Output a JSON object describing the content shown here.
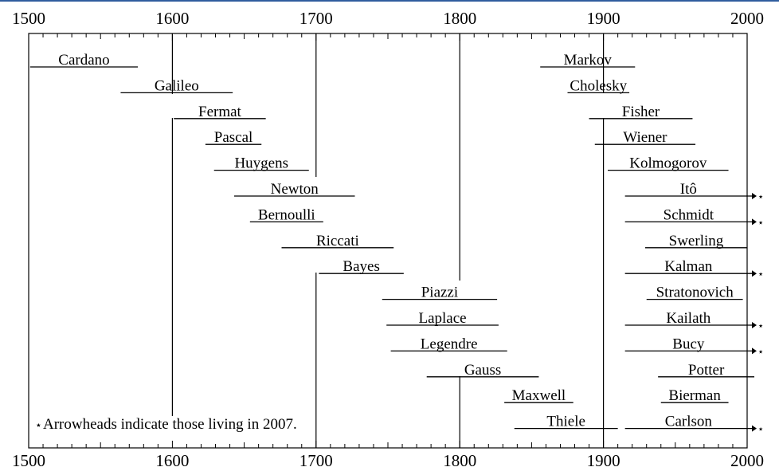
{
  "chart_data": {
    "type": "timeline",
    "xlim": [
      1500,
      2000
    ],
    "ticks": [
      1500,
      1600,
      1700,
      1800,
      1900,
      2000
    ],
    "tick_labels": [
      "1500",
      "1600",
      "1700",
      "1800",
      "1900",
      "2000"
    ],
    "minor_tick_step": 10,
    "century_lines": [
      1600,
      1700,
      1800,
      1900
    ],
    "people": [
      {
        "name": "Cardano",
        "birth": 1501,
        "death": 1576,
        "living": false
      },
      {
        "name": "Galileo",
        "birth": 1564,
        "death": 1642,
        "living": false
      },
      {
        "name": "Fermat",
        "birth": 1601,
        "death": 1665,
        "living": false
      },
      {
        "name": "Pascal",
        "birth": 1623,
        "death": 1662,
        "living": false
      },
      {
        "name": "Huygens",
        "birth": 1629,
        "death": 1695,
        "living": false
      },
      {
        "name": "Newton",
        "birth": 1643,
        "death": 1727,
        "living": false
      },
      {
        "name": "Bernoulli",
        "birth": 1654,
        "death": 1705,
        "living": false
      },
      {
        "name": "Riccati",
        "birth": 1676,
        "death": 1754,
        "living": false
      },
      {
        "name": "Bayes",
        "birth": 1702,
        "death": 1761,
        "living": false
      },
      {
        "name": "Piazzi",
        "birth": 1746,
        "death": 1826,
        "living": false
      },
      {
        "name": "Laplace",
        "birth": 1749,
        "death": 1827,
        "living": false
      },
      {
        "name": "Legendre",
        "birth": 1752,
        "death": 1833,
        "living": false
      },
      {
        "name": "Gauss",
        "birth": 1777,
        "death": 1855,
        "living": false
      },
      {
        "name": "Maxwell",
        "birth": 1831,
        "death": 1879,
        "living": false
      },
      {
        "name": "Thiele",
        "birth": 1838,
        "death": 1910,
        "living": false
      },
      {
        "name": "Markov",
        "birth": 1856,
        "death": 1922,
        "living": false
      },
      {
        "name": "Cholesky",
        "birth": 1875,
        "death": 1918,
        "living": false
      },
      {
        "name": "Fisher",
        "birth": 1890,
        "death": 1962,
        "living": false
      },
      {
        "name": "Wiener",
        "birth": 1894,
        "death": 1964,
        "living": false
      },
      {
        "name": "Kolmogorov",
        "birth": 1903,
        "death": 1987,
        "living": false
      },
      {
        "name": "Itô",
        "birth": 1915,
        "death": null,
        "living": true
      },
      {
        "name": "Schmidt",
        "birth": 1915,
        "death": null,
        "living": true
      },
      {
        "name": "Swerling",
        "birth": 1929,
        "death": 2000,
        "living": false
      },
      {
        "name": "Kalman",
        "birth": 1915,
        "death": null,
        "living": true
      },
      {
        "name": "Stratonovich",
        "birth": 1930,
        "death": 1997,
        "living": false
      },
      {
        "name": "Kailath",
        "birth": 1915,
        "death": null,
        "living": true
      },
      {
        "name": "Bucy",
        "birth": 1915,
        "death": null,
        "living": true
      },
      {
        "name": "Potter",
        "birth": 1938,
        "death": 2005,
        "living": false
      },
      {
        "name": "Bierman",
        "birth": 1940,
        "death": 1987,
        "living": false
      },
      {
        "name": "Carlson",
        "birth": 1915,
        "death": null,
        "living": true
      }
    ],
    "annotation": "Arrowheads indicate those living in 2007.",
    "annotation_symbol": "⋆"
  }
}
